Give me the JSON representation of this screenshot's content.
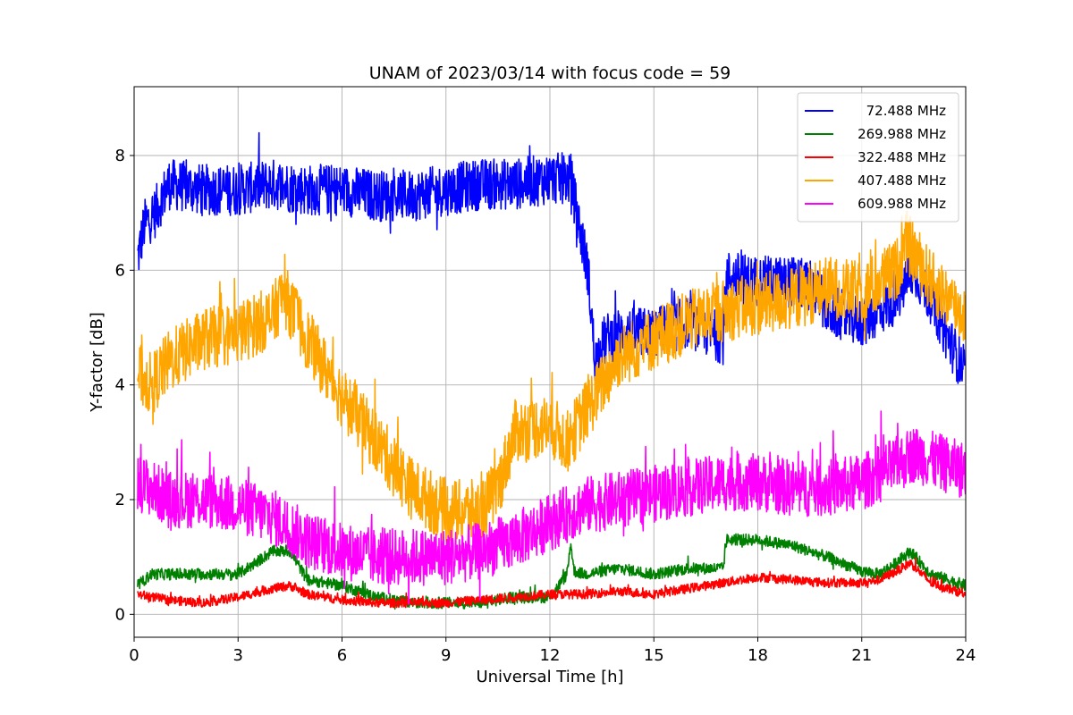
{
  "chart_data": {
    "type": "line",
    "title": "UNAM of 2023/03/14 with focus code = 59",
    "xlabel": "Universal Time [h]",
    "ylabel": "Y-factor [dB]",
    "xlim": [
      0,
      24
    ],
    "ylim": [
      -0.4,
      9.2
    ],
    "xticks": [
      0,
      3,
      6,
      9,
      12,
      15,
      18,
      21,
      24
    ],
    "yticks": [
      0,
      2,
      4,
      6,
      8
    ],
    "grid": true,
    "legend_position": "top-right",
    "series": [
      {
        "name": " 72.488 MHz",
        "color": "#0000ff",
        "noise": 0.45,
        "x": [
          0.1,
          0.3,
          0.6,
          1.0,
          2.0,
          3.0,
          4.0,
          5.0,
          6.0,
          7.0,
          8.0,
          9.0,
          10.0,
          11.0,
          12.0,
          12.6,
          12.9,
          13.1,
          13.3,
          13.6,
          14.0,
          15.0,
          16.0,
          17.0,
          17.1,
          18.0,
          19.0,
          19.6,
          20.0,
          21.0,
          22.0,
          22.5,
          23.0,
          23.5,
          24.0
        ],
        "y": [
          6.2,
          6.8,
          7.0,
          7.5,
          7.4,
          7.4,
          7.5,
          7.4,
          7.4,
          7.3,
          7.3,
          7.4,
          7.5,
          7.5,
          7.6,
          7.6,
          6.6,
          6.0,
          4.4,
          4.8,
          4.9,
          4.9,
          5.1,
          4.8,
          5.9,
          5.8,
          5.8,
          5.7,
          5.3,
          5.1,
          5.5,
          6.0,
          5.5,
          4.8,
          4.2
        ]
      },
      {
        "name": "269.988 MHz",
        "color": "#008000",
        "noise": 0.1,
        "x": [
          0.1,
          0.5,
          1.0,
          2.0,
          3.0,
          3.5,
          4.0,
          4.5,
          5.0,
          6.0,
          6.5,
          7.0,
          8.0,
          9.0,
          10.0,
          11.0,
          12.0,
          12.5,
          12.6,
          12.7,
          13.0,
          14.0,
          15.0,
          16.0,
          17.0,
          17.1,
          18.0,
          19.0,
          20.0,
          21.0,
          21.5,
          22.0,
          22.4,
          23.0,
          24.0
        ],
        "y": [
          0.5,
          0.7,
          0.7,
          0.7,
          0.7,
          0.9,
          1.1,
          1.1,
          0.6,
          0.5,
          0.4,
          0.3,
          0.2,
          0.2,
          0.2,
          0.3,
          0.3,
          0.7,
          1.25,
          0.75,
          0.7,
          0.8,
          0.7,
          0.8,
          0.8,
          1.3,
          1.3,
          1.2,
          1.0,
          0.75,
          0.7,
          0.9,
          1.1,
          0.7,
          0.5
        ]
      },
      {
        "name": "322.488 MHz",
        "color": "#ff0000",
        "noise": 0.08,
        "x": [
          0.1,
          1.0,
          2.0,
          3.0,
          4.0,
          4.5,
          5.0,
          6.0,
          7.0,
          8.0,
          9.0,
          10.0,
          11.0,
          12.0,
          13.0,
          14.0,
          15.0,
          16.0,
          17.0,
          18.0,
          19.0,
          20.0,
          21.0,
          21.5,
          22.0,
          22.4,
          23.0,
          24.0
        ],
        "y": [
          0.35,
          0.25,
          0.2,
          0.3,
          0.45,
          0.5,
          0.35,
          0.25,
          0.2,
          0.2,
          0.2,
          0.25,
          0.3,
          0.35,
          0.35,
          0.4,
          0.35,
          0.45,
          0.55,
          0.65,
          0.6,
          0.55,
          0.55,
          0.6,
          0.75,
          0.9,
          0.55,
          0.35
        ]
      },
      {
        "name": "407.488 MHz",
        "color": "#ffa500",
        "noise": 0.55,
        "x": [
          0.1,
          0.5,
          1.0,
          2.0,
          3.0,
          4.0,
          4.3,
          5.0,
          6.0,
          7.0,
          7.5,
          8.0,
          9.0,
          10.0,
          10.5,
          11.0,
          12.0,
          12.5,
          13.0,
          14.0,
          15.0,
          16.0,
          17.0,
          18.0,
          19.0,
          20.0,
          21.0,
          22.0,
          22.3,
          23.0,
          24.0
        ],
        "y": [
          4.2,
          4.0,
          4.4,
          4.8,
          4.9,
          5.2,
          5.6,
          4.8,
          3.8,
          3.0,
          2.6,
          2.2,
          1.8,
          1.8,
          2.2,
          3.2,
          3.3,
          3.0,
          3.5,
          4.5,
          4.8,
          5.1,
          5.3,
          5.4,
          5.5,
          5.7,
          5.6,
          6.0,
          6.5,
          5.8,
          5.2
        ]
      },
      {
        "name": "609.988 MHz",
        "color": "#ff00ff",
        "noise": 0.5,
        "x": [
          0.1,
          0.5,
          1.0,
          2.0,
          3.0,
          4.0,
          5.0,
          6.0,
          7.0,
          8.0,
          9.0,
          10.0,
          11.0,
          12.0,
          13.0,
          14.0,
          15.0,
          16.0,
          17.0,
          18.0,
          19.0,
          20.0,
          21.0,
          22.0,
          22.5,
          23.0,
          24.0
        ],
        "y": [
          2.3,
          2.2,
          2.0,
          2.0,
          1.9,
          1.7,
          1.3,
          1.1,
          1.0,
          1.0,
          1.0,
          1.1,
          1.3,
          1.6,
          1.9,
          2.0,
          2.1,
          2.2,
          2.3,
          2.3,
          2.2,
          2.2,
          2.3,
          2.6,
          2.8,
          2.7,
          2.5
        ]
      }
    ]
  }
}
